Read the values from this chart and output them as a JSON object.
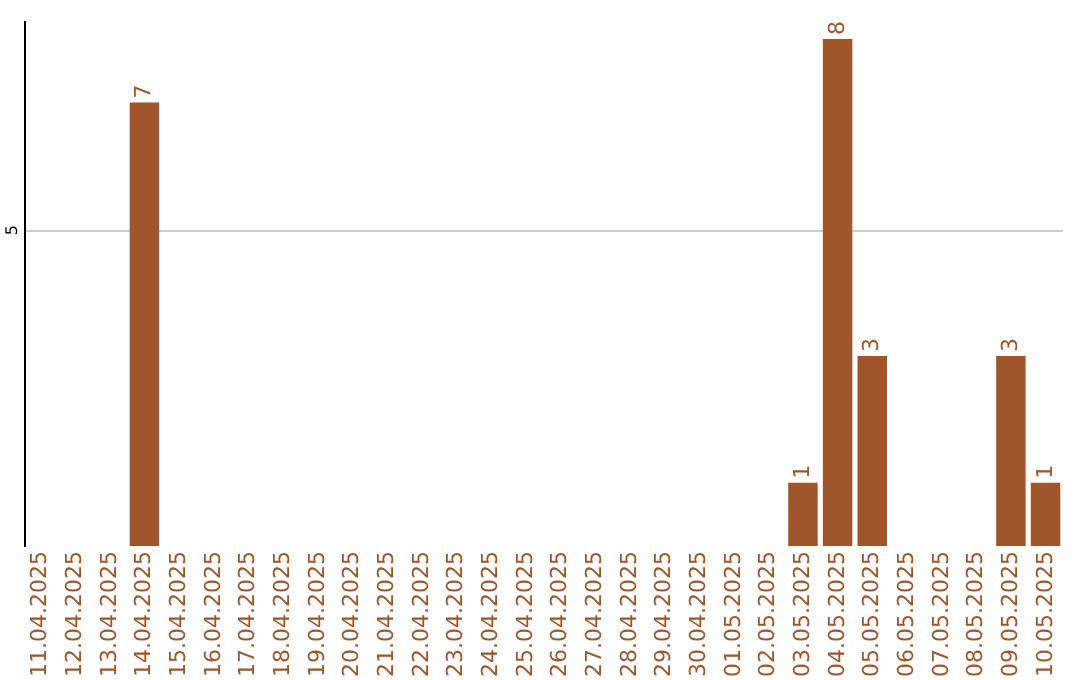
{
  "chart_data": {
    "type": "bar",
    "categories": [
      "11.04.2025",
      "12.04.2025",
      "13.04.2025",
      "14.04.2025",
      "15.04.2025",
      "16.04.2025",
      "17.04.2025",
      "18.04.2025",
      "19.04.2025",
      "20.04.2025",
      "21.04.2025",
      "22.04.2025",
      "23.04.2025",
      "24.04.2025",
      "25.04.2025",
      "26.04.2025",
      "27.04.2025",
      "28.04.2025",
      "29.04.2025",
      "30.04.2025",
      "01.05.2025",
      "02.05.2025",
      "03.05.2025",
      "04.05.2025",
      "05.05.2025",
      "06.05.2025",
      "07.05.2025",
      "08.05.2025",
      "09.05.2025",
      "10.05.2025"
    ],
    "values": [
      0,
      0,
      0,
      7,
      0,
      0,
      0,
      0,
      0,
      0,
      0,
      0,
      0,
      0,
      0,
      0,
      0,
      0,
      0,
      0,
      0,
      0,
      1,
      8,
      3,
      0,
      0,
      0,
      3,
      1
    ],
    "value_labels": [
      null,
      null,
      null,
      "7",
      null,
      null,
      null,
      null,
      null,
      null,
      null,
      null,
      null,
      null,
      null,
      null,
      null,
      null,
      null,
      null,
      null,
      null,
      "1",
      "8",
      "3",
      null,
      null,
      null,
      "3",
      "1"
    ],
    "color": "#a0552a",
    "ylim": [
      0,
      8.3
    ],
    "yticks": [
      5
    ],
    "grid": "y"
  }
}
